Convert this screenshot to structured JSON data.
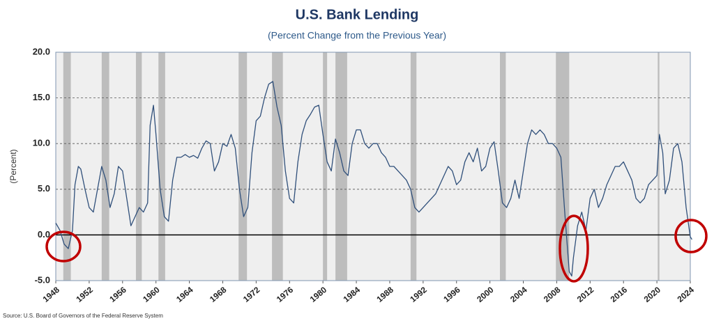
{
  "chart_data": {
    "type": "line",
    "title": "U.S. Bank Lending",
    "subtitle": "(Percent Change from the Previous Year)",
    "y_label": "(Percent)",
    "source": "Source: U.S. Board of Governors of the Federal Reserve System",
    "color": "#2f4f7a",
    "grid": true,
    "xlim": [
      1948,
      2024
    ],
    "xticks": [
      1948,
      1952,
      1956,
      1960,
      1964,
      1968,
      1972,
      1976,
      1980,
      1984,
      1988,
      1992,
      1996,
      2000,
      2004,
      2008,
      2012,
      2016,
      2020,
      2024
    ],
    "ylim": [
      -5,
      20
    ],
    "yticks": [
      {
        "value": -5,
        "label": "-5.0"
      },
      {
        "value": 0,
        "label": "0.0"
      },
      {
        "value": 5,
        "label": "5.0"
      },
      {
        "value": 10,
        "label": "10.0"
      },
      {
        "value": 15,
        "label": "15.0"
      },
      {
        "value": 20,
        "label": "20.0"
      }
    ],
    "recessions": [
      {
        "start": 1948.9,
        "end": 1949.8
      },
      {
        "start": 1953.5,
        "end": 1954.4
      },
      {
        "start": 1957.6,
        "end": 1958.3
      },
      {
        "start": 1960.3,
        "end": 1961.1
      },
      {
        "start": 1969.9,
        "end": 1970.9
      },
      {
        "start": 1973.9,
        "end": 1975.2
      },
      {
        "start": 1980.0,
        "end": 1980.5
      },
      {
        "start": 1981.5,
        "end": 1982.9
      },
      {
        "start": 1990.5,
        "end": 1991.2
      },
      {
        "start": 2001.2,
        "end": 2001.9
      },
      {
        "start": 2007.9,
        "end": 2009.5
      },
      {
        "start": 2020.1,
        "end": 2020.3
      }
    ],
    "x": [
      1948.0,
      1948.5,
      1949.0,
      1949.5,
      1950.0,
      1950.3,
      1950.7,
      1951.0,
      1951.5,
      1952.0,
      1952.5,
      1953.0,
      1953.5,
      1954.0,
      1954.5,
      1955.0,
      1955.5,
      1956.0,
      1956.5,
      1957.0,
      1957.5,
      1958.0,
      1958.5,
      1959.0,
      1959.3,
      1959.7,
      1960.0,
      1960.5,
      1961.0,
      1961.5,
      1962.0,
      1962.5,
      1963.0,
      1963.5,
      1964.0,
      1964.5,
      1965.0,
      1965.5,
      1966.0,
      1966.5,
      1967.0,
      1967.5,
      1968.0,
      1968.5,
      1969.0,
      1969.5,
      1970.0,
      1970.5,
      1971.0,
      1971.5,
      1972.0,
      1972.5,
      1973.0,
      1973.5,
      1974.0,
      1974.5,
      1975.0,
      1975.5,
      1976.0,
      1976.5,
      1977.0,
      1977.5,
      1978.0,
      1978.5,
      1979.0,
      1979.5,
      1980.0,
      1980.5,
      1981.0,
      1981.5,
      1982.0,
      1982.5,
      1983.0,
      1983.5,
      1984.0,
      1984.5,
      1985.0,
      1985.5,
      1986.0,
      1986.5,
      1987.0,
      1987.5,
      1988.0,
      1988.5,
      1989.0,
      1989.5,
      1990.0,
      1990.5,
      1991.0,
      1991.5,
      1992.0,
      1992.5,
      1993.0,
      1993.5,
      1994.0,
      1994.5,
      1995.0,
      1995.5,
      1996.0,
      1996.5,
      1997.0,
      1997.5,
      1998.0,
      1998.5,
      1999.0,
      1999.5,
      2000.0,
      2000.5,
      2001.0,
      2001.5,
      2002.0,
      2002.5,
      2003.0,
      2003.5,
      2004.0,
      2004.5,
      2005.0,
      2005.5,
      2006.0,
      2006.5,
      2007.0,
      2007.5,
      2008.0,
      2008.5,
      2009.0,
      2009.5,
      2009.8,
      2010.0,
      2010.5,
      2011.0,
      2011.5,
      2012.0,
      2012.5,
      2013.0,
      2013.5,
      2014.0,
      2014.5,
      2015.0,
      2015.5,
      2016.0,
      2016.5,
      2017.0,
      2017.5,
      2018.0,
      2018.5,
      2019.0,
      2019.5,
      2020.0,
      2020.3,
      2020.7,
      2021.0,
      2021.5,
      2022.0,
      2022.5,
      2023.0,
      2023.5,
      2024.0,
      2024.2
    ],
    "values": [
      1.3,
      0.5,
      -1.0,
      -1.5,
      0.5,
      5.5,
      7.5,
      7.2,
      5,
      3,
      2.5,
      5,
      7.5,
      6,
      3,
      4.5,
      7.5,
      7,
      4,
      1,
      2,
      3,
      2.5,
      3.5,
      12,
      14.2,
      11,
      5,
      2,
      1.5,
      6,
      8.5,
      8.5,
      8.8,
      8.5,
      8.7,
      8.4,
      9.5,
      10.3,
      10,
      7,
      8,
      10,
      9.7,
      11,
      9.5,
      5,
      2,
      3,
      9,
      12.5,
      13,
      15,
      16.5,
      16.8,
      14,
      12,
      7,
      4,
      3.5,
      8,
      11,
      12.5,
      13.2,
      14,
      14.2,
      11,
      8,
      7,
      10.5,
      9,
      7,
      6.5,
      10,
      11.5,
      11.5,
      10,
      9.5,
      10,
      10,
      9,
      8.5,
      7.5,
      7.5,
      7,
      6.5,
      6,
      5,
      3,
      2.5,
      3,
      3.5,
      4,
      4.5,
      5.5,
      6.5,
      7.5,
      7,
      5.5,
      6,
      8,
      9,
      8,
      9.5,
      7,
      7.5,
      9.5,
      10.2,
      7,
      3.5,
      3,
      4,
      6,
      4,
      7,
      10,
      11.5,
      11,
      11.5,
      11,
      10,
      10,
      9.5,
      8.5,
      2,
      -4,
      -4.5,
      -2.5,
      1,
      2.5,
      0.5,
      4,
      5,
      3,
      4,
      5.5,
      6.5,
      7.5,
      7.5,
      8,
      7,
      6,
      4,
      3.5,
      4,
      5.5,
      6,
      6.5,
      11,
      9,
      4.5,
      6,
      9.5,
      10,
      8,
      3,
      -0.2,
      -0.5
    ]
  }
}
